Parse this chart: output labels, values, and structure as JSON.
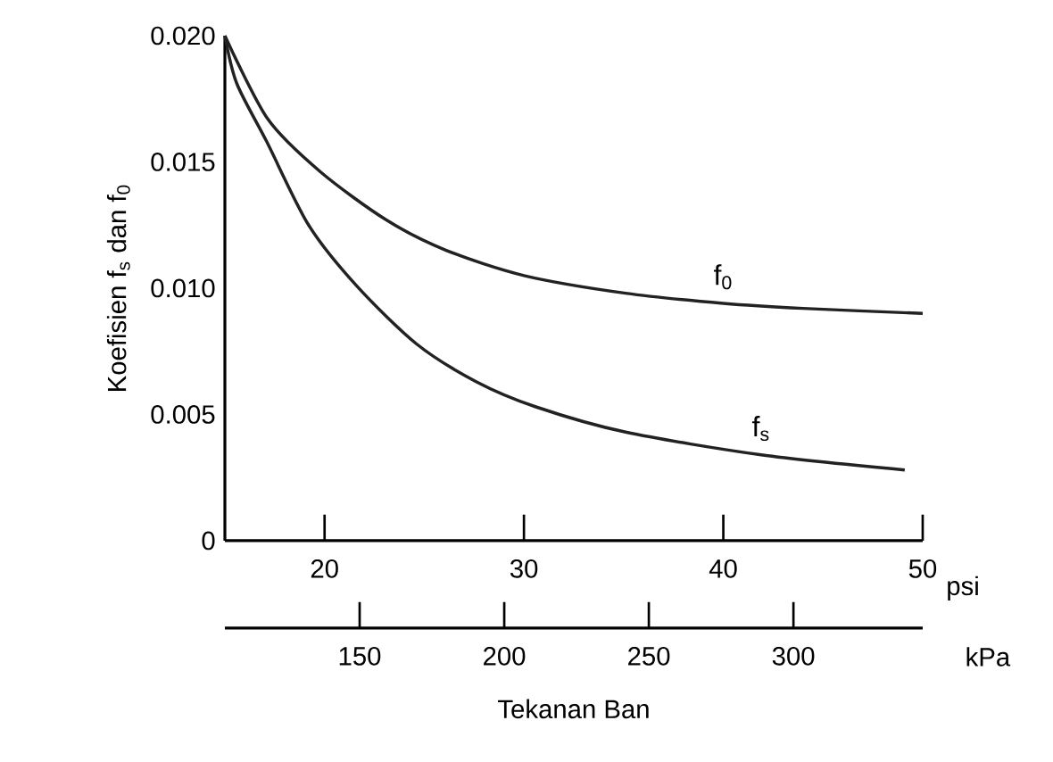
{
  "chart_data": {
    "type": "line",
    "xlabel": "psi",
    "x2label": "kPa",
    "ylabel": "Koefisien f$_{s}$ dan f$_{0}$",
    "xlim": [
      15,
      50
    ],
    "xticks": [
      20,
      30,
      40,
      50
    ],
    "x2lim": [
      103.4,
      344.7
    ],
    "x2ticks": [
      150,
      200,
      250,
      300
    ],
    "ylim": [
      0,
      0.02
    ],
    "yticks": [
      0,
      0.005,
      {
        "value": 0.01,
        "label": "0.010"
      },
      0.015,
      {
        "value": 0.02,
        "label": "0.020"
      }
    ],
    "marker": "none",
    "line_style": "solid",
    "series": [
      {
        "name": "f$_{0}$",
        "color": "#222222",
        "x": [
          15,
          17.15,
          19.8,
          23.1,
          26.1,
          30.0,
          35.1,
          40.0,
          44.0,
          50.0
        ],
        "values": [
          0.02,
          0.0167,
          0.0146,
          0.0127,
          0.0115,
          0.0105,
          0.0098,
          0.0094,
          0.0092,
          0.009
        ]
      },
      {
        "name": "f$_{s}$",
        "color": "#222222",
        "x": [
          15,
          15.6,
          17.1,
          19.2,
          21.6,
          24.6,
          27.6,
          30.6,
          35.1,
          41.9,
          49.1
        ],
        "values": [
          0.02,
          0.0181,
          0.0158,
          0.0125,
          0.0101,
          0.0078,
          0.0063,
          0.0053,
          0.0043,
          0.0034,
          0.0028
        ]
      }
    ],
    "annotations": [
      "Tekanan Ban"
    ]
  }
}
